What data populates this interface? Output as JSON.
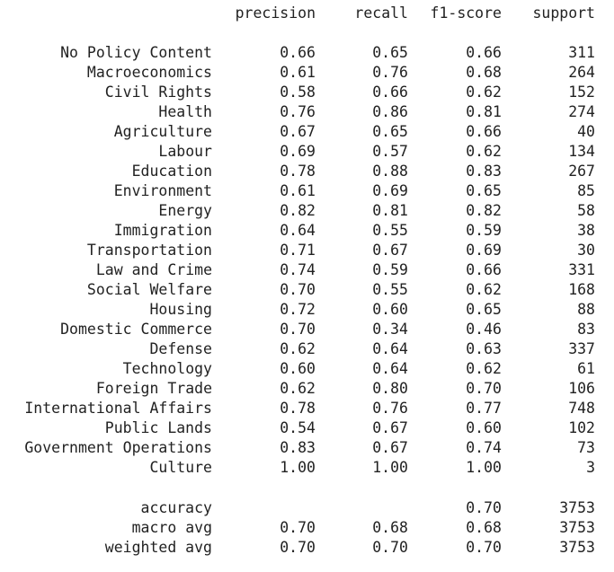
{
  "headers": [
    "precision",
    "recall",
    "f1-score",
    "support"
  ],
  "classes": [
    {
      "label": "No Policy Content",
      "precision": "0.66",
      "recall": "0.65",
      "f1": "0.66",
      "support": "311"
    },
    {
      "label": "Macroeconomics",
      "precision": "0.61",
      "recall": "0.76",
      "f1": "0.68",
      "support": "264"
    },
    {
      "label": "Civil Rights",
      "precision": "0.58",
      "recall": "0.66",
      "f1": "0.62",
      "support": "152"
    },
    {
      "label": "Health",
      "precision": "0.76",
      "recall": "0.86",
      "f1": "0.81",
      "support": "274"
    },
    {
      "label": "Agriculture",
      "precision": "0.67",
      "recall": "0.65",
      "f1": "0.66",
      "support": "40"
    },
    {
      "label": "Labour",
      "precision": "0.69",
      "recall": "0.57",
      "f1": "0.62",
      "support": "134"
    },
    {
      "label": "Education",
      "precision": "0.78",
      "recall": "0.88",
      "f1": "0.83",
      "support": "267"
    },
    {
      "label": "Environment",
      "precision": "0.61",
      "recall": "0.69",
      "f1": "0.65",
      "support": "85"
    },
    {
      "label": "Energy",
      "precision": "0.82",
      "recall": "0.81",
      "f1": "0.82",
      "support": "58"
    },
    {
      "label": "Immigration",
      "precision": "0.64",
      "recall": "0.55",
      "f1": "0.59",
      "support": "38"
    },
    {
      "label": "Transportation",
      "precision": "0.71",
      "recall": "0.67",
      "f1": "0.69",
      "support": "30"
    },
    {
      "label": "Law and Crime",
      "precision": "0.74",
      "recall": "0.59",
      "f1": "0.66",
      "support": "331"
    },
    {
      "label": "Social Welfare",
      "precision": "0.70",
      "recall": "0.55",
      "f1": "0.62",
      "support": "168"
    },
    {
      "label": "Housing",
      "precision": "0.72",
      "recall": "0.60",
      "f1": "0.65",
      "support": "88"
    },
    {
      "label": "Domestic Commerce",
      "precision": "0.70",
      "recall": "0.34",
      "f1": "0.46",
      "support": "83"
    },
    {
      "label": "Defense",
      "precision": "0.62",
      "recall": "0.64",
      "f1": "0.63",
      "support": "337"
    },
    {
      "label": "Technology",
      "precision": "0.60",
      "recall": "0.64",
      "f1": "0.62",
      "support": "61"
    },
    {
      "label": "Foreign Trade",
      "precision": "0.62",
      "recall": "0.80",
      "f1": "0.70",
      "support": "106"
    },
    {
      "label": "International Affairs",
      "precision": "0.78",
      "recall": "0.76",
      "f1": "0.77",
      "support": "748"
    },
    {
      "label": "Public Lands",
      "precision": "0.54",
      "recall": "0.67",
      "f1": "0.60",
      "support": "102"
    },
    {
      "label": "Government Operations",
      "precision": "0.83",
      "recall": "0.67",
      "f1": "0.74",
      "support": "73"
    },
    {
      "label": "Culture",
      "precision": "1.00",
      "recall": "1.00",
      "f1": "1.00",
      "support": "3"
    }
  ],
  "summary": [
    {
      "label": "accuracy",
      "precision": "",
      "recall": "",
      "f1": "0.70",
      "support": "3753"
    },
    {
      "label": "macro avg",
      "precision": "0.70",
      "recall": "0.68",
      "f1": "0.68",
      "support": "3753"
    },
    {
      "label": "weighted avg",
      "precision": "0.70",
      "recall": "0.70",
      "f1": "0.70",
      "support": "3753"
    }
  ]
}
